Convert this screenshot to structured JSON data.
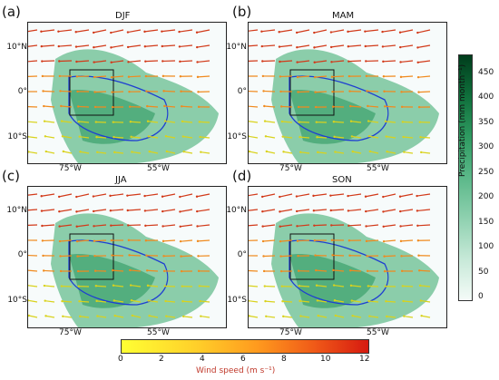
{
  "panels": [
    {
      "label": "(a)",
      "season": "DJF"
    },
    {
      "label": "(b)",
      "season": "MAM"
    },
    {
      "label": "(c)",
      "season": "JJA"
    },
    {
      "label": "(d)",
      "season": "SON"
    }
  ],
  "lat_ticks": [
    "10°N",
    "0°",
    "10°S"
  ],
  "lon_ticks": [
    "75°W",
    "55°W"
  ],
  "precip_colorbar": {
    "title": "Precipitation (mm month⁻¹)",
    "ticks": [
      "450",
      "400",
      "350",
      "300",
      "250",
      "200",
      "150",
      "100",
      "50",
      "0"
    ],
    "colors": [
      "#f4fbf8",
      "#c7e9d8",
      "#8fd1b0",
      "#5bb889",
      "#2f9a61",
      "#0f6f3b",
      "#003d1c"
    ]
  },
  "wind_colorbar": {
    "title": "Wind speed (m s⁻¹)",
    "ticks": [
      "0",
      "2",
      "4",
      "6",
      "8",
      "10",
      "12"
    ]
  }
}
